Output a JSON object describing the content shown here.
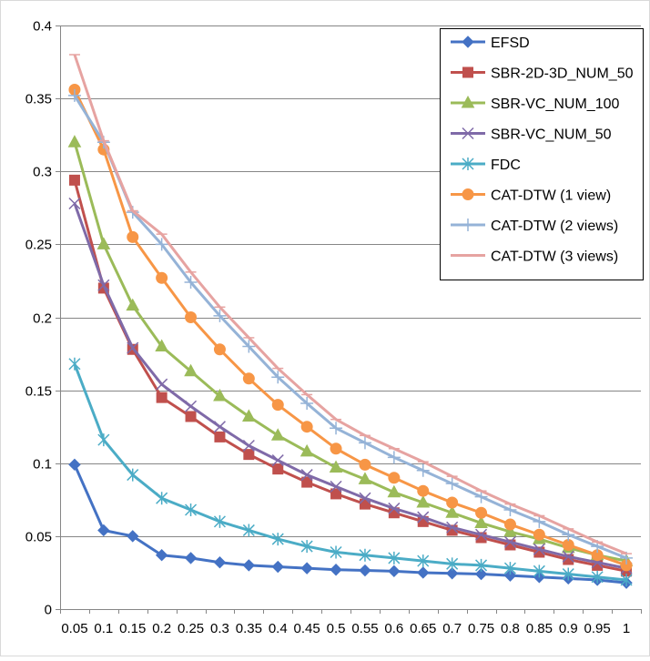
{
  "chart_data": {
    "type": "line",
    "title": "",
    "xlabel": "",
    "ylabel": "",
    "x": [
      0.05,
      0.1,
      0.15,
      0.2,
      0.25,
      0.3,
      0.35,
      0.4,
      0.45,
      0.5,
      0.55,
      0.6,
      0.65,
      0.7,
      0.75,
      0.8,
      0.85,
      0.9,
      0.95,
      1
    ],
    "x_tick_labels": [
      "0.05",
      "0.1",
      "0.15",
      "0.2",
      "0.25",
      "0.3",
      "0.35",
      "0.4",
      "0.45",
      "0.5",
      "0.55",
      "0.6",
      "0.65",
      "0.7",
      "0.75",
      "0.8",
      "0.85",
      "0.9",
      "0.95",
      "1"
    ],
    "ylim": [
      0,
      0.4
    ],
    "y_ticks": [
      0,
      0.05,
      0.1,
      0.15,
      0.2,
      0.25,
      0.3,
      0.35,
      0.4
    ],
    "y_tick_labels": [
      "0",
      "0.05",
      "0.1",
      "0.15",
      "0.2",
      "0.25",
      "0.3",
      "0.35",
      "0.4"
    ],
    "grid": "horizontal",
    "legend_position": "top-right",
    "series": [
      {
        "name": "EFSD",
        "color": "#4472C4",
        "marker": "diamond",
        "values": [
          0.099,
          0.054,
          0.05,
          0.037,
          0.035,
          0.032,
          0.03,
          0.029,
          0.028,
          0.027,
          0.0265,
          0.026,
          0.025,
          0.0245,
          0.024,
          0.023,
          0.022,
          0.021,
          0.02,
          0.018
        ]
      },
      {
        "name": "SBR-2D-3D_NUM_50",
        "color": "#C0504D",
        "marker": "square",
        "values": [
          0.294,
          0.22,
          0.178,
          0.145,
          0.132,
          0.118,
          0.106,
          0.096,
          0.087,
          0.079,
          0.072,
          0.066,
          0.06,
          0.054,
          0.049,
          0.044,
          0.039,
          0.034,
          0.03,
          0.026
        ]
      },
      {
        "name": "SBR-VC_NUM_100",
        "color": "#9BBB59",
        "marker": "triangle",
        "values": [
          0.32,
          0.25,
          0.208,
          0.18,
          0.163,
          0.146,
          0.132,
          0.119,
          0.108,
          0.097,
          0.089,
          0.08,
          0.073,
          0.066,
          0.059,
          0.053,
          0.048,
          0.042,
          0.037,
          0.033
        ]
      },
      {
        "name": "SBR-VC_NUM_50",
        "color": "#7F6AA8",
        "marker": "x",
        "values": [
          0.278,
          0.222,
          0.179,
          0.154,
          0.139,
          0.125,
          0.112,
          0.102,
          0.092,
          0.084,
          0.076,
          0.069,
          0.063,
          0.056,
          0.051,
          0.046,
          0.041,
          0.036,
          0.032,
          0.028
        ]
      },
      {
        "name": "FDC",
        "color": "#4BACC6",
        "marker": "star",
        "values": [
          0.168,
          0.116,
          0.092,
          0.076,
          0.068,
          0.06,
          0.054,
          0.048,
          0.043,
          0.039,
          0.037,
          0.035,
          0.033,
          0.031,
          0.03,
          0.028,
          0.026,
          0.024,
          0.022,
          0.02
        ]
      },
      {
        "name": "CAT-DTW (1 view)",
        "color": "#F79646",
        "marker": "circle",
        "values": [
          0.356,
          0.315,
          0.255,
          0.227,
          0.2,
          0.178,
          0.158,
          0.14,
          0.125,
          0.11,
          0.099,
          0.09,
          0.081,
          0.073,
          0.066,
          0.058,
          0.051,
          0.044,
          0.037,
          0.03
        ]
      },
      {
        "name": "CAT-DTW (2 views)",
        "color": "#95B3D7",
        "marker": "plus",
        "values": [
          0.352,
          0.32,
          0.272,
          0.25,
          0.224,
          0.201,
          0.18,
          0.159,
          0.141,
          0.124,
          0.114,
          0.104,
          0.095,
          0.086,
          0.077,
          0.068,
          0.06,
          0.051,
          0.043,
          0.035
        ]
      },
      {
        "name": "CAT-DTW (3 views)",
        "color": "#E6A3A1",
        "marker": "dash",
        "values": [
          0.38,
          0.321,
          0.273,
          0.257,
          0.231,
          0.207,
          0.186,
          0.165,
          0.147,
          0.13,
          0.119,
          0.11,
          0.101,
          0.091,
          0.081,
          0.072,
          0.064,
          0.055,
          0.046,
          0.038
        ]
      }
    ]
  }
}
